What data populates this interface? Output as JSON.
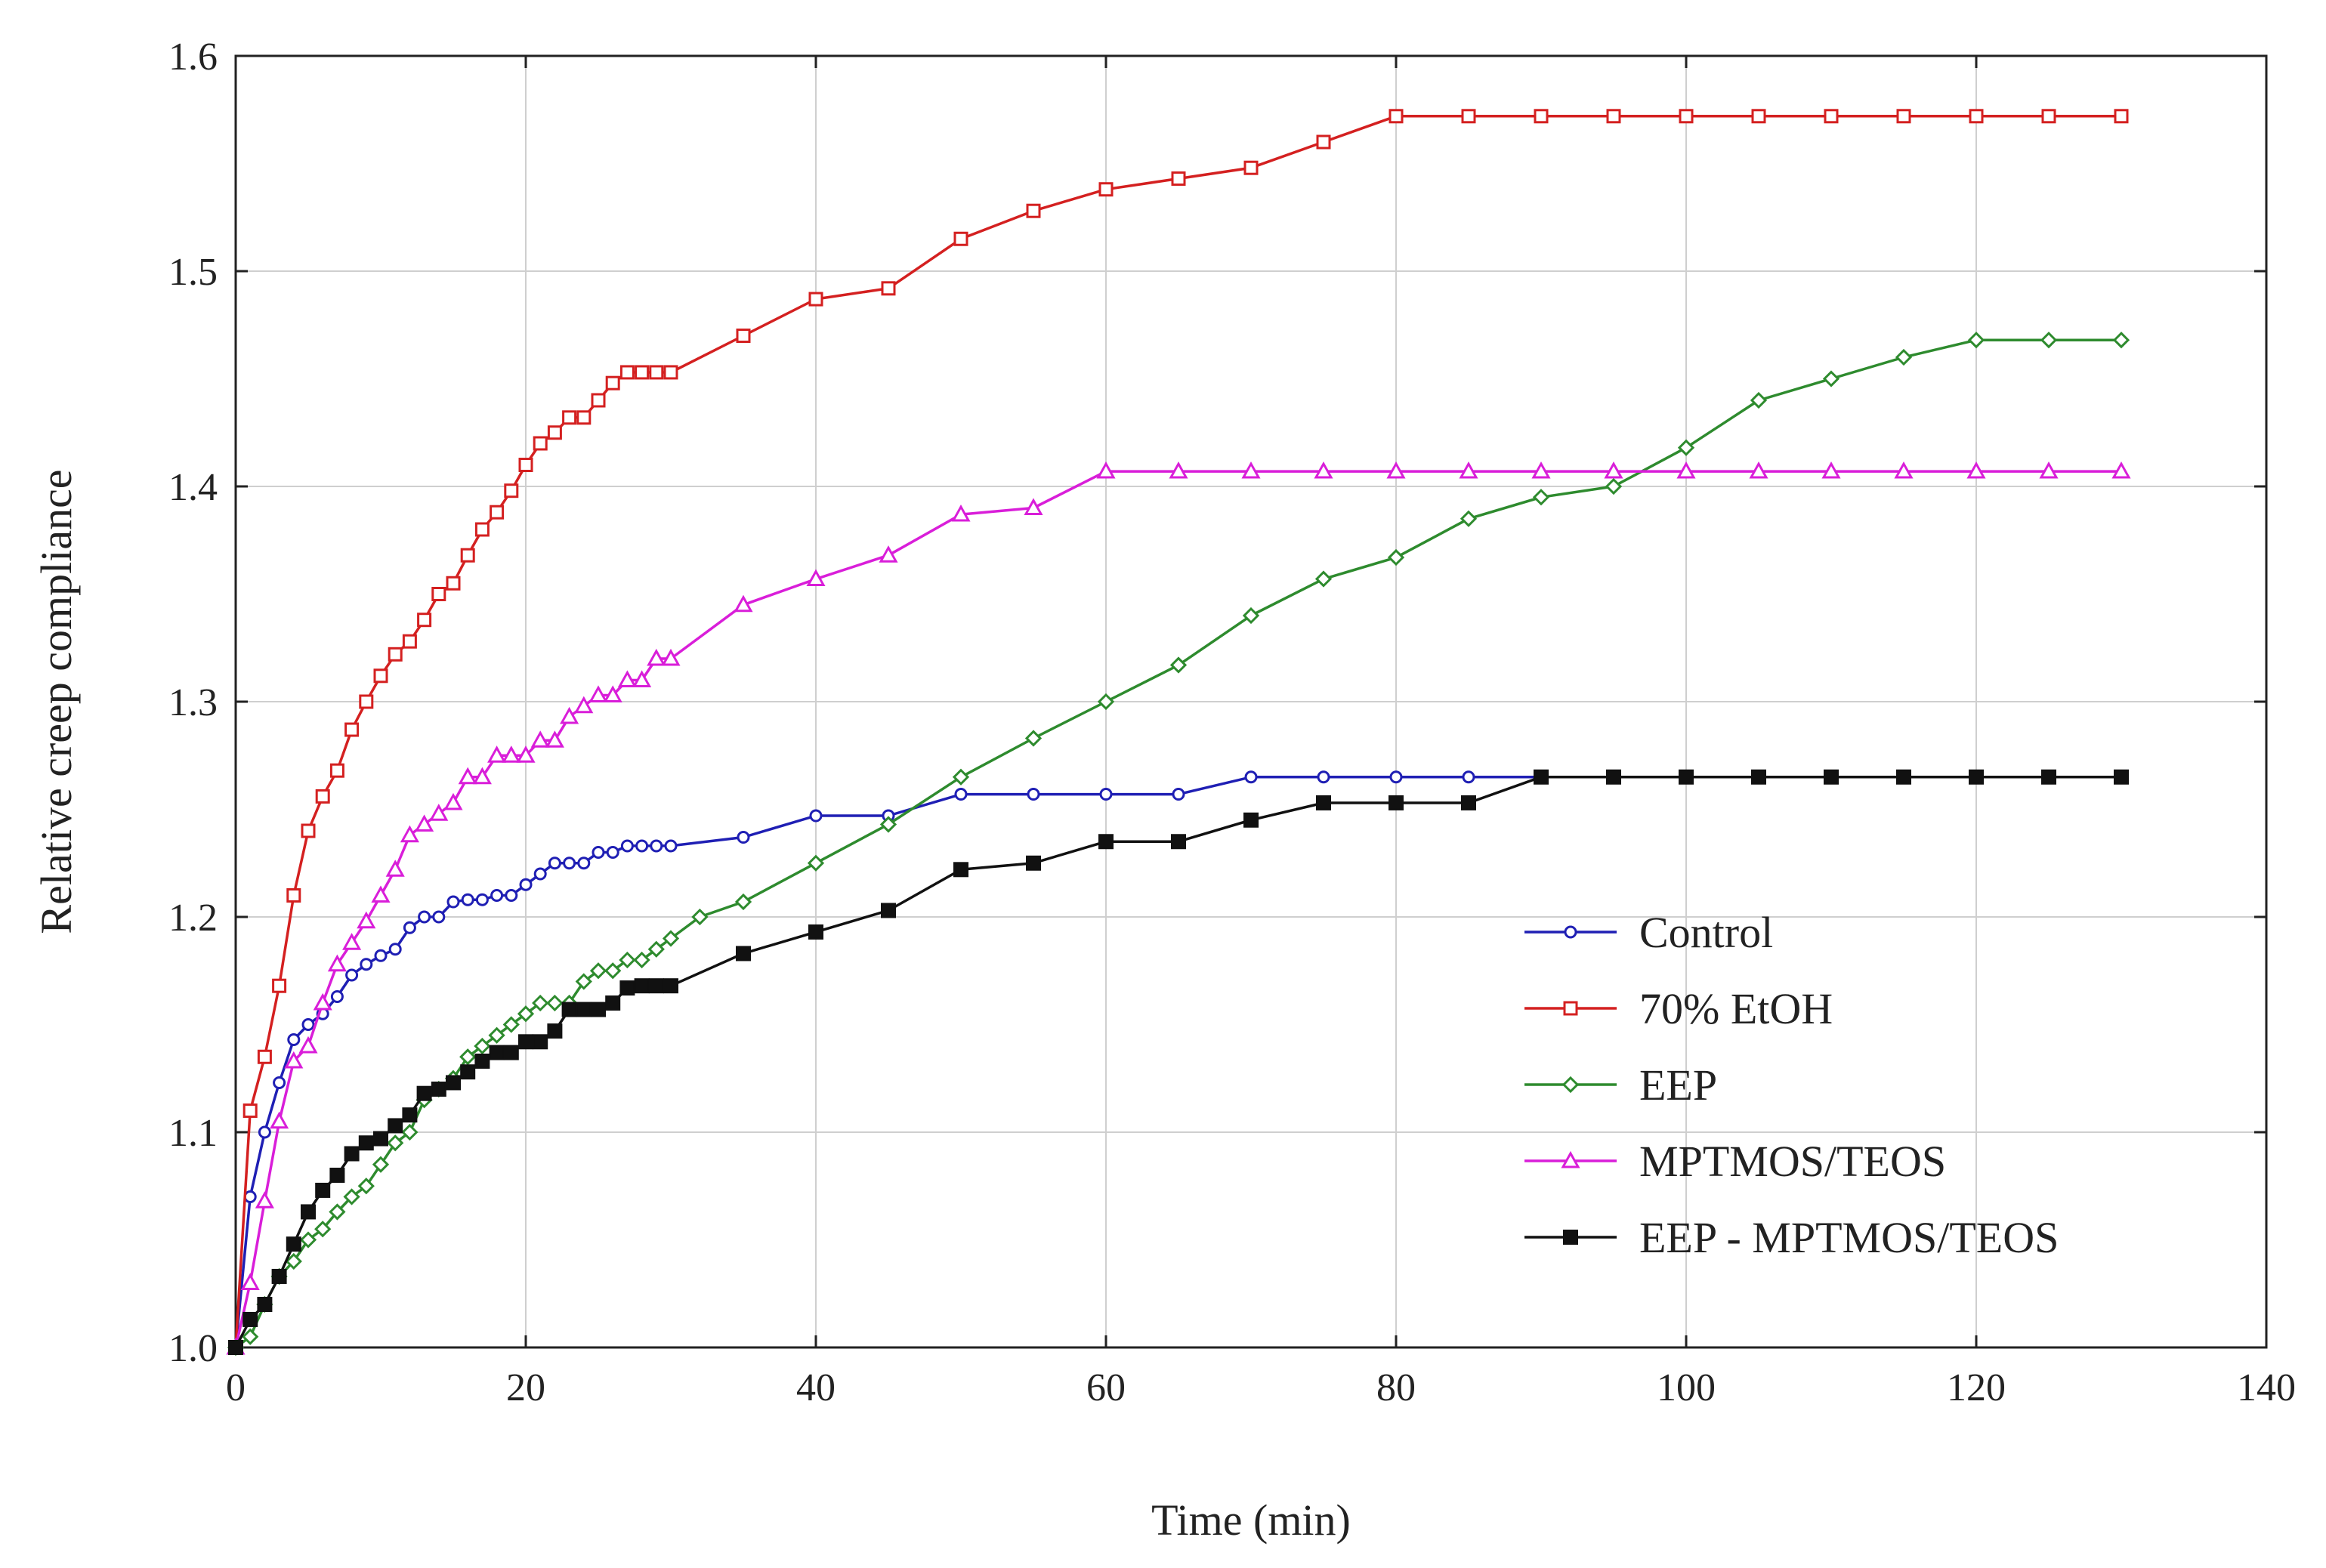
{
  "chart_data": {
    "type": "line",
    "title": "",
    "xlabel": "Time (min)",
    "ylabel": "Relative creep compliance",
    "xlim": [
      0,
      140
    ],
    "ylim": [
      1.0,
      1.6
    ],
    "x_ticks": [
      "0",
      "20",
      "40",
      "60",
      "80",
      "100",
      "120",
      "140"
    ],
    "y_ticks": [
      "1.0",
      "1.1",
      "1.2",
      "1.3",
      "1.4",
      "1.5",
      "1.6"
    ],
    "grid": true,
    "legend_position": "lower-right",
    "series": [
      {
        "name": "Control",
        "color": "#1f1fb4",
        "marker": "circle-open",
        "points": [
          [
            0,
            1.0
          ],
          [
            1,
            1.07
          ],
          [
            2,
            1.1
          ],
          [
            3,
            1.123
          ],
          [
            4,
            1.143
          ],
          [
            5,
            1.15
          ],
          [
            6,
            1.155
          ],
          [
            7,
            1.163
          ],
          [
            8,
            1.173
          ],
          [
            9,
            1.178
          ],
          [
            10,
            1.182
          ],
          [
            11,
            1.185
          ],
          [
            12,
            1.195
          ],
          [
            13,
            1.2
          ],
          [
            14,
            1.2
          ],
          [
            15,
            1.207
          ],
          [
            16,
            1.208
          ],
          [
            17,
            1.208
          ],
          [
            18,
            1.21
          ],
          [
            19,
            1.21
          ],
          [
            20,
            1.215
          ],
          [
            21,
            1.22
          ],
          [
            22,
            1.225
          ],
          [
            23,
            1.225
          ],
          [
            24,
            1.225
          ],
          [
            25,
            1.23
          ],
          [
            26,
            1.23
          ],
          [
            27,
            1.233
          ],
          [
            28,
            1.233
          ],
          [
            29,
            1.233
          ],
          [
            30,
            1.233
          ],
          [
            35,
            1.237
          ],
          [
            40,
            1.247
          ],
          [
            45,
            1.247
          ],
          [
            50,
            1.257
          ],
          [
            55,
            1.257
          ],
          [
            60,
            1.257
          ],
          [
            65,
            1.257
          ],
          [
            70,
            1.265
          ],
          [
            75,
            1.265
          ],
          [
            80,
            1.265
          ],
          [
            85,
            1.265
          ],
          [
            90,
            1.265
          ],
          [
            95,
            1.265
          ],
          [
            100,
            1.265
          ],
          [
            105,
            1.265
          ],
          [
            110,
            1.265
          ],
          [
            115,
            1.265
          ],
          [
            120,
            1.265
          ],
          [
            125,
            1.265
          ],
          [
            130,
            1.265
          ]
        ]
      },
      {
        "name": "70% EtOH",
        "color": "#d42020",
        "marker": "square-open",
        "points": [
          [
            0,
            1.0
          ],
          [
            1,
            1.11
          ],
          [
            2,
            1.135
          ],
          [
            3,
            1.168
          ],
          [
            4,
            1.21
          ],
          [
            5,
            1.24
          ],
          [
            6,
            1.256
          ],
          [
            7,
            1.268
          ],
          [
            8,
            1.287
          ],
          [
            9,
            1.3
          ],
          [
            10,
            1.312
          ],
          [
            11,
            1.322
          ],
          [
            12,
            1.328
          ],
          [
            13,
            1.338
          ],
          [
            14,
            1.35
          ],
          [
            15,
            1.355
          ],
          [
            16,
            1.368
          ],
          [
            17,
            1.38
          ],
          [
            18,
            1.388
          ],
          [
            19,
            1.398
          ],
          [
            20,
            1.41
          ],
          [
            21,
            1.42
          ],
          [
            22,
            1.425
          ],
          [
            23,
            1.432
          ],
          [
            24,
            1.432
          ],
          [
            25,
            1.44
          ],
          [
            26,
            1.448
          ],
          [
            27,
            1.453
          ],
          [
            28,
            1.453
          ],
          [
            29,
            1.453
          ],
          [
            30,
            1.453
          ],
          [
            35,
            1.47
          ],
          [
            40,
            1.487
          ],
          [
            45,
            1.492
          ],
          [
            50,
            1.515
          ],
          [
            55,
            1.528
          ],
          [
            60,
            1.538
          ],
          [
            65,
            1.543
          ],
          [
            70,
            1.548
          ],
          [
            75,
            1.56
          ],
          [
            80,
            1.572
          ],
          [
            85,
            1.572
          ],
          [
            90,
            1.572
          ],
          [
            95,
            1.572
          ],
          [
            100,
            1.572
          ],
          [
            105,
            1.572
          ],
          [
            110,
            1.572
          ],
          [
            115,
            1.572
          ],
          [
            120,
            1.572
          ],
          [
            125,
            1.572
          ],
          [
            130,
            1.572
          ]
        ]
      },
      {
        "name": "EEP",
        "color": "#2e8b2e",
        "marker": "diamond-open",
        "points": [
          [
            0,
            1.0
          ],
          [
            1,
            1.005
          ],
          [
            2,
            1.02
          ],
          [
            3,
            1.033
          ],
          [
            4,
            1.04
          ],
          [
            5,
            1.05
          ],
          [
            6,
            1.055
          ],
          [
            7,
            1.063
          ],
          [
            8,
            1.07
          ],
          [
            9,
            1.075
          ],
          [
            10,
            1.085
          ],
          [
            11,
            1.095
          ],
          [
            12,
            1.1
          ],
          [
            13,
            1.115
          ],
          [
            14,
            1.12
          ],
          [
            15,
            1.125
          ],
          [
            16,
            1.135
          ],
          [
            17,
            1.14
          ],
          [
            18,
            1.145
          ],
          [
            19,
            1.15
          ],
          [
            20,
            1.155
          ],
          [
            21,
            1.16
          ],
          [
            22,
            1.16
          ],
          [
            23,
            1.16
          ],
          [
            24,
            1.17
          ],
          [
            25,
            1.175
          ],
          [
            26,
            1.175
          ],
          [
            27,
            1.18
          ],
          [
            28,
            1.18
          ],
          [
            29,
            1.185
          ],
          [
            30,
            1.19
          ],
          [
            32,
            1.2
          ],
          [
            35,
            1.207
          ],
          [
            40,
            1.225
          ],
          [
            45,
            1.243
          ],
          [
            50,
            1.265
          ],
          [
            55,
            1.283
          ],
          [
            60,
            1.3
          ],
          [
            65,
            1.317
          ],
          [
            70,
            1.34
          ],
          [
            75,
            1.357
          ],
          [
            80,
            1.367
          ],
          [
            85,
            1.385
          ],
          [
            90,
            1.395
          ],
          [
            95,
            1.4
          ],
          [
            100,
            1.418
          ],
          [
            105,
            1.44
          ],
          [
            110,
            1.45
          ],
          [
            115,
            1.46
          ],
          [
            120,
            1.468
          ],
          [
            125,
            1.468
          ],
          [
            130,
            1.468
          ]
        ]
      },
      {
        "name": "MPTMOS/TEOS",
        "color": "#d91ed9",
        "marker": "triangle-open",
        "points": [
          [
            0,
            1.0
          ],
          [
            1,
            1.03
          ],
          [
            2,
            1.068
          ],
          [
            3,
            1.105
          ],
          [
            4,
            1.133
          ],
          [
            5,
            1.14
          ],
          [
            6,
            1.16
          ],
          [
            7,
            1.178
          ],
          [
            8,
            1.188
          ],
          [
            9,
            1.198
          ],
          [
            10,
            1.21
          ],
          [
            11,
            1.222
          ],
          [
            12,
            1.238
          ],
          [
            13,
            1.243
          ],
          [
            14,
            1.248
          ],
          [
            15,
            1.253
          ],
          [
            16,
            1.265
          ],
          [
            17,
            1.265
          ],
          [
            18,
            1.275
          ],
          [
            19,
            1.275
          ],
          [
            20,
            1.275
          ],
          [
            21,
            1.282
          ],
          [
            22,
            1.282
          ],
          [
            23,
            1.293
          ],
          [
            24,
            1.298
          ],
          [
            25,
            1.303
          ],
          [
            26,
            1.303
          ],
          [
            27,
            1.31
          ],
          [
            28,
            1.31
          ],
          [
            29,
            1.32
          ],
          [
            30,
            1.32
          ],
          [
            35,
            1.345
          ],
          [
            40,
            1.357
          ],
          [
            45,
            1.368
          ],
          [
            50,
            1.387
          ],
          [
            55,
            1.39
          ],
          [
            60,
            1.407
          ],
          [
            65,
            1.407
          ],
          [
            70,
            1.407
          ],
          [
            75,
            1.407
          ],
          [
            80,
            1.407
          ],
          [
            85,
            1.407
          ],
          [
            90,
            1.407
          ],
          [
            95,
            1.407
          ],
          [
            100,
            1.407
          ],
          [
            105,
            1.407
          ],
          [
            110,
            1.407
          ],
          [
            115,
            1.407
          ],
          [
            120,
            1.407
          ],
          [
            125,
            1.407
          ],
          [
            130,
            1.407
          ]
        ]
      },
      {
        "name": "EEP - MPTMOS/TEOS",
        "color": "#111111",
        "marker": "square-filled",
        "points": [
          [
            0,
            1.0
          ],
          [
            1,
            1.013
          ],
          [
            2,
            1.02
          ],
          [
            3,
            1.033
          ],
          [
            4,
            1.048
          ],
          [
            5,
            1.063
          ],
          [
            6,
            1.073
          ],
          [
            7,
            1.08
          ],
          [
            8,
            1.09
          ],
          [
            9,
            1.095
          ],
          [
            10,
            1.097
          ],
          [
            11,
            1.103
          ],
          [
            12,
            1.108
          ],
          [
            13,
            1.118
          ],
          [
            14,
            1.12
          ],
          [
            15,
            1.123
          ],
          [
            16,
            1.128
          ],
          [
            17,
            1.133
          ],
          [
            18,
            1.137
          ],
          [
            19,
            1.137
          ],
          [
            20,
            1.142
          ],
          [
            21,
            1.142
          ],
          [
            22,
            1.147
          ],
          [
            23,
            1.157
          ],
          [
            24,
            1.157
          ],
          [
            25,
            1.157
          ],
          [
            26,
            1.16
          ],
          [
            27,
            1.167
          ],
          [
            28,
            1.168
          ],
          [
            29,
            1.168
          ],
          [
            30,
            1.168
          ],
          [
            35,
            1.183
          ],
          [
            40,
            1.193
          ],
          [
            45,
            1.203
          ],
          [
            50,
            1.222
          ],
          [
            55,
            1.225
          ],
          [
            60,
            1.235
          ],
          [
            65,
            1.235
          ],
          [
            70,
            1.245
          ],
          [
            75,
            1.253
          ],
          [
            80,
            1.253
          ],
          [
            85,
            1.253
          ],
          [
            90,
            1.265
          ],
          [
            95,
            1.265
          ],
          [
            100,
            1.265
          ],
          [
            105,
            1.265
          ],
          [
            110,
            1.265
          ],
          [
            115,
            1.265
          ],
          [
            120,
            1.265
          ],
          [
            125,
            1.265
          ],
          [
            130,
            1.265
          ]
        ]
      }
    ]
  }
}
